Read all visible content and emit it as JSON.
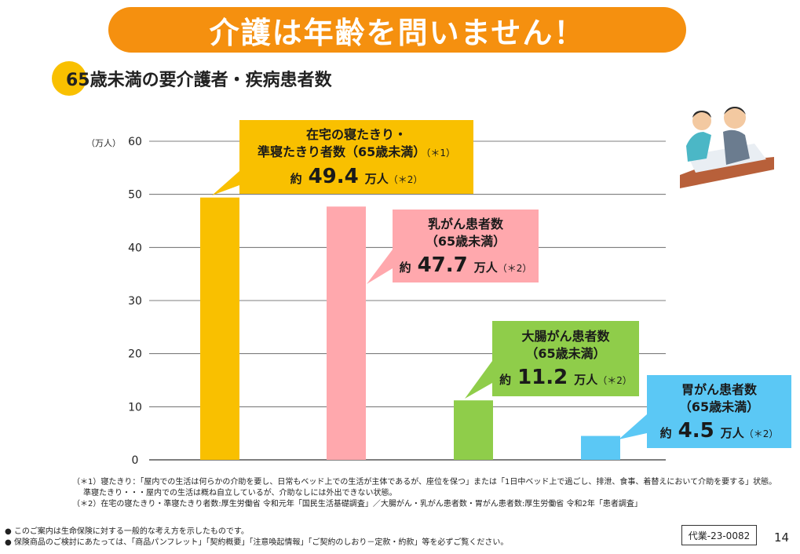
{
  "banner": {
    "title": "介護は年齢を問いません！"
  },
  "subtitle": "65歳未満の要介護者・疾病患者数",
  "chart_data": {
    "type": "bar",
    "ylabel": "（万人）",
    "ylim": [
      0,
      60
    ],
    "yticks": [
      0,
      10,
      20,
      30,
      40,
      50,
      60
    ],
    "grid": true,
    "categories": [
      "在宅の寝たきり・準寝たきり者数（65歳未満）",
      "乳がん患者数（65歳未満）",
      "大腸がん患者数（65歳未満）",
      "胃がん患者数（65歳未満）"
    ],
    "values": [
      49.4,
      47.7,
      11.2,
      4.5
    ],
    "colors": [
      "#f9c000",
      "#ffa8ad",
      "#8fcd4a",
      "#5bc8f5"
    ]
  },
  "callouts": [
    {
      "line1": "在宅の寝たきり・",
      "line2": "準寝たきり者数（65歳未満）",
      "sup": "（＊1）",
      "prefix": "約",
      "value": "49.4",
      "unit": "万人",
      "note": "（＊2）"
    },
    {
      "line1": "乳がん患者数",
      "line2": "（65歳未満）",
      "prefix": "約",
      "value": "47.7",
      "unit": "万人",
      "note": "（＊2）"
    },
    {
      "line1": "大腸がん患者数",
      "line2": "（65歳未満）",
      "prefix": "約",
      "value": "11.2",
      "unit": "万人",
      "note": "（＊2）"
    },
    {
      "line1": "胃がん患者数",
      "line2": "（65歳未満）",
      "prefix": "約",
      "value": "4.5",
      "unit": "万人",
      "note": "（＊2）"
    }
  ],
  "footnotes": [
    "（＊1）寝たきり：「屋内での生活は何らかの介助を要し、日常もベッド上での生活が主体であるが、座位を保つ」または「1日中ベッド上で過ごし、排泄、食事、着替えにおいて介助を要する」状態。",
    "準寝たきり・・・屋内での生活は概ね自立しているが、介助なしには外出できない状態。",
    "（＊2）在宅の寝たきり・準寝たきり者数:厚生労働省 令和元年「国民生活基礎調査」／大腸がん・乳がん患者数・胃がん患者数:厚生労働省 令和2年「患者調査」"
  ],
  "disclaimer": [
    "このご案内は生命保険に対する一般的な考え方を示したものです。",
    "保険商品のご検討にあたっては、「商品パンフレット」「契約概要」「注意喚起情報」「ご契約のしおり－定款・約款」等を必ずご覧ください。"
  ],
  "code": "代業-23-0082",
  "page_number": "14"
}
